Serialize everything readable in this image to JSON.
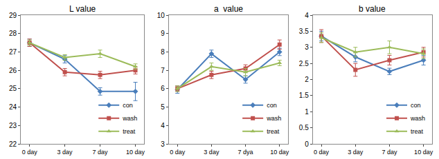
{
  "chart_data": [
    {
      "type": "line",
      "title": "L value",
      "categories": [
        "0 day",
        "3 day",
        "7 day",
        "10 day"
      ],
      "ylim": [
        22,
        29
      ],
      "yticks": [
        22,
        23,
        24,
        25,
        26,
        27,
        28,
        29
      ],
      "grid": false,
      "legend": "lower right",
      "series": [
        {
          "name": "con",
          "color": "#4a7ebb",
          "marker": "diamond",
          "values": [
            27.5,
            26.6,
            24.85,
            24.85
          ],
          "error": [
            0.2,
            0.2,
            0.2,
            0.5
          ]
        },
        {
          "name": "wash",
          "color": "#c0504d",
          "marker": "square",
          "values": [
            27.5,
            25.9,
            25.75,
            26.0
          ],
          "error": [
            0.2,
            0.2,
            0.2,
            0.2
          ]
        },
        {
          "name": "treat",
          "color": "#9bbb59",
          "marker": "triangle-up",
          "values": [
            27.5,
            26.7,
            26.9,
            26.2
          ],
          "error": [
            0.15,
            0.15,
            0.2,
            0.15
          ]
        }
      ]
    },
    {
      "type": "line",
      "title": "a  value",
      "categories": [
        "0 day",
        "3 day",
        "7 dya",
        "10 day"
      ],
      "ylim": [
        3,
        10
      ],
      "yticks": [
        3,
        4,
        5,
        6,
        7,
        8,
        9,
        10
      ],
      "grid": false,
      "legend": "lower right",
      "series": [
        {
          "name": "con",
          "color": "#4a7ebb",
          "marker": "diamond",
          "values": [
            5.95,
            7.9,
            6.5,
            8.0
          ],
          "error": [
            0.2,
            0.2,
            0.2,
            0.2
          ]
        },
        {
          "name": "wash",
          "color": "#c0504d",
          "marker": "square",
          "values": [
            6.0,
            6.75,
            7.1,
            8.4
          ],
          "error": [
            0.15,
            0.2,
            0.2,
            0.25
          ]
        },
        {
          "name": "treat",
          "color": "#9bbb59",
          "marker": "triangle-up",
          "values": [
            6.0,
            7.2,
            6.9,
            7.4
          ],
          "error": [
            0.15,
            0.2,
            0.2,
            0.15
          ]
        }
      ]
    },
    {
      "type": "line",
      "title": "b value",
      "categories": [
        "0 day",
        "3 day",
        "7 day",
        "10 day"
      ],
      "ylim": [
        0,
        4
      ],
      "yticks": [
        0,
        0.5,
        1,
        1.5,
        2,
        2.5,
        3,
        3.5,
        4
      ],
      "grid": false,
      "legend": "lower right",
      "series": [
        {
          "name": "con",
          "color": "#4a7ebb",
          "marker": "diamond",
          "values": [
            3.35,
            2.7,
            2.25,
            2.6
          ],
          "error": [
            0.15,
            0.15,
            0.1,
            0.15
          ]
        },
        {
          "name": "wash",
          "color": "#c0504d",
          "marker": "square",
          "values": [
            3.35,
            2.3,
            2.6,
            2.85
          ],
          "error": [
            0.2,
            0.2,
            0.15,
            0.15
          ]
        },
        {
          "name": "treat",
          "color": "#9bbb59",
          "marker": "triangle-up",
          "values": [
            3.3,
            2.85,
            3.0,
            2.8
          ],
          "error": [
            0.15,
            0.15,
            0.2,
            0.15
          ]
        }
      ]
    }
  ]
}
